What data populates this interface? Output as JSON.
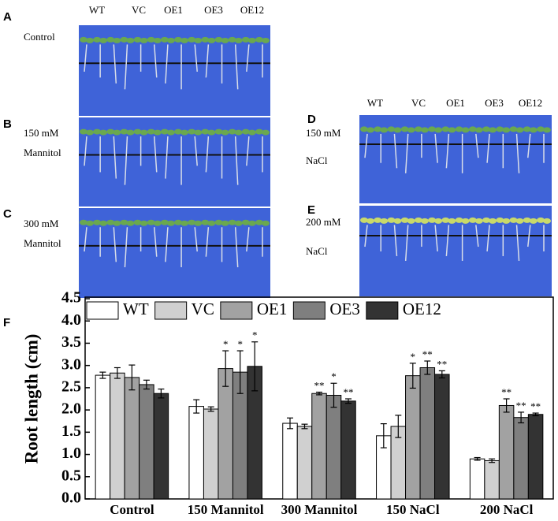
{
  "column_labels_top": [
    "WT",
    "VC",
    "OE1",
    "OE3",
    "OE12"
  ],
  "column_labels_right": [
    "WT",
    "VC",
    "OE1",
    "OE3",
    "OE12"
  ],
  "panels": [
    {
      "label": "A",
      "lines": [
        "Control"
      ]
    },
    {
      "label": "B",
      "lines": [
        "150 mM",
        "Mannitol"
      ]
    },
    {
      "label": "C",
      "lines": [
        "300 mM",
        "Mannitol"
      ]
    },
    {
      "label": "D",
      "lines": [
        "150 mM",
        "NaCl"
      ]
    },
    {
      "label": "E",
      "lines": [
        "200 mM",
        "NaCl"
      ]
    }
  ],
  "chart_label": "F",
  "chart_data": {
    "type": "bar",
    "y_label": "Root length (cm)",
    "categories": [
      "Control",
      "150 Mannitol",
      "300 Mannitol",
      "150 NaCl",
      "200 NaCl"
    ],
    "ylim": [
      0,
      4.5
    ],
    "yticks": [
      {
        "value": 0,
        "label": "0.0"
      },
      0.5,
      {
        "value": 1,
        "label": "1.0"
      },
      1.5,
      {
        "value": 2,
        "label": "2.0"
      },
      2.5,
      {
        "value": 3,
        "label": "3.0"
      },
      3.5,
      {
        "value": 4,
        "label": "4.0"
      },
      4.5
    ],
    "legend": "top-left",
    "series": [
      {
        "name": "WT",
        "color": "#ffffff",
        "values": [
          2.78,
          2.08,
          1.7,
          1.42,
          0.9
        ],
        "errors": [
          0.07,
          0.15,
          0.12,
          0.27,
          0.03
        ],
        "significance": [
          null,
          null,
          null,
          null,
          null
        ]
      },
      {
        "name": "VC",
        "color": "#d0d0d0",
        "values": [
          2.83,
          2.02,
          1.63,
          1.63,
          0.86
        ],
        "errors": [
          0.12,
          0.05,
          0.05,
          0.25,
          0.04
        ],
        "significance": [
          null,
          null,
          null,
          null,
          null
        ]
      },
      {
        "name": "OE1",
        "color": "#a2a2a2",
        "values": [
          2.73,
          2.93,
          2.37,
          2.77,
          2.1
        ],
        "errors": [
          0.28,
          0.4,
          0.03,
          0.28,
          0.15
        ],
        "significance": [
          null,
          "*",
          "**",
          "*",
          "**"
        ]
      },
      {
        "name": "OE3",
        "color": "#7f7f7f",
        "values": [
          2.57,
          2.85,
          2.33,
          2.95,
          1.83
        ],
        "errors": [
          0.1,
          0.48,
          0.27,
          0.15,
          0.12
        ],
        "significance": [
          null,
          "*",
          "*",
          "**",
          "**"
        ]
      },
      {
        "name": "OE12",
        "color": "#333333",
        "values": [
          2.37,
          2.98,
          2.2,
          2.8,
          1.9
        ],
        "errors": [
          0.1,
          0.55,
          0.05,
          0.08,
          0.03
        ],
        "significance": [
          null,
          "*",
          "**",
          "**",
          "**"
        ]
      }
    ]
  }
}
